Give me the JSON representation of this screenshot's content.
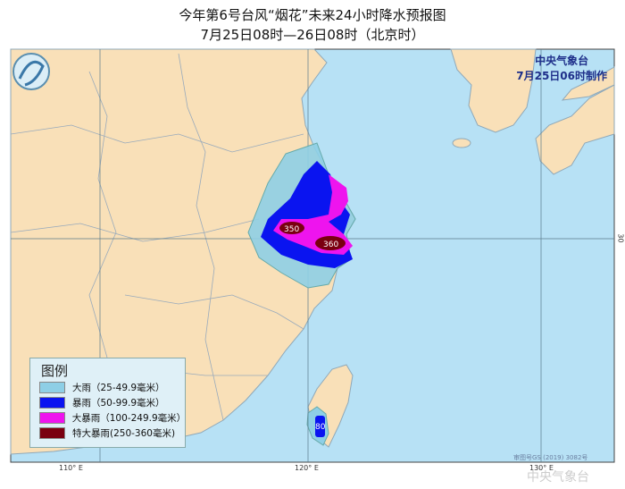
{
  "title": {
    "line1": "今年第6号台风“烟花”未来24小时降水预报图",
    "line2": "7月25日08时—26日08时（北京时）"
  },
  "agency": {
    "name": "中央气象台",
    "issued": "7月25日06时制作"
  },
  "legend": {
    "title": "图例",
    "items": [
      {
        "label": "大雨（25-49.9毫米）",
        "color": "#8ecfe6"
      },
      {
        "label": "暴雨（50-99.9毫米）",
        "color": "#0a14f0"
      },
      {
        "label": "大暴雨（100-249.9毫米）",
        "color": "#ee14ee"
      },
      {
        "label": "特大暴雨(250-360毫米)",
        "color": "#7a0010"
      }
    ]
  },
  "max_labels": {
    "west": "350",
    "east": "360",
    "taiwan": "80"
  },
  "axes": {
    "lon_110": "110° E",
    "lon_120": "120° E",
    "lon_130": "130° E",
    "lat_30": "30"
  },
  "approval_no": "审图号GS (2019) 3082号",
  "watermark": "中央气象台",
  "colors": {
    "land": "#f9e0b8",
    "sea": "#b7e1f5",
    "border": "#9aa"
  }
}
